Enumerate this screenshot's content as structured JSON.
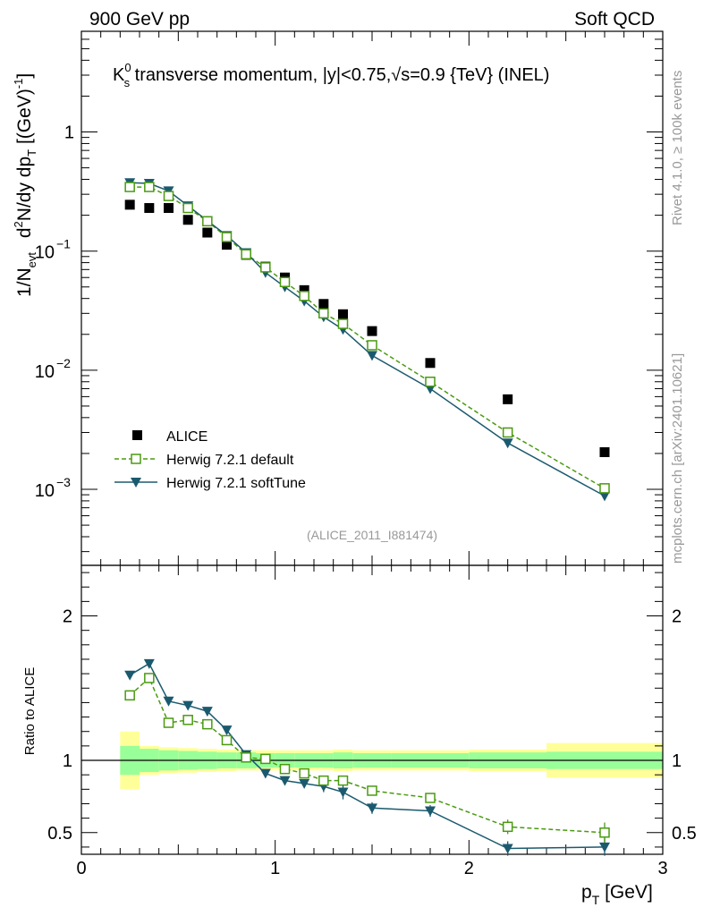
{
  "header": {
    "left": "900 GeV pp",
    "right": "Soft QCD"
  },
  "side_labels": {
    "rivet": "Rivet 4.1.0, ≥ 100k events",
    "mcplots": "mcplots.cern.ch [arXiv:2401.10621]"
  },
  "colors": {
    "alice": "#000000",
    "default": "#4a9a10",
    "softtune": "#1b5a6e",
    "band_inner": "#99ff99",
    "band_outer": "#ffff99"
  },
  "chart_data": [
    {
      "type": "scatter",
      "title": "K⁰s transverse momentum, |y|<0.75,√s=0.9 {TeV} (INEL)",
      "title_parts": {
        "main": "K",
        "sup": "0",
        "sub": "s",
        "rest_before_sqrt": " transverse momentum, |y|<0.75,",
        "sqrt_sign": "√",
        "rest_after": "s=0.9 {TeV} (INEL)"
      },
      "ylabel": "1/Nevt d²N/dy dpT [(GeV)⁻¹]",
      "ylabel_parts": {
        "a": "1/N",
        "a_sub": "evt",
        "b": "d",
        "b_sup": "2",
        "c": "N/dy dp",
        "c_sub": "T",
        "d": "[(GeV)",
        "d_sup": "-1",
        "e": "]"
      },
      "yscale": "log",
      "xlim": [
        0,
        3
      ],
      "ylim": [
        0.00023,
        7.0
      ],
      "y_tick_labels": [
        {
          "value": 1,
          "label": "1"
        },
        {
          "value": 0.1,
          "base": "10",
          "exp": "−1"
        },
        {
          "value": 0.01,
          "base": "10",
          "exp": "−2"
        },
        {
          "value": 0.001,
          "base": "10",
          "exp": "−3"
        }
      ],
      "watermark": "(ALICE_2011_I881474)",
      "legend": {
        "position": "bottom-left",
        "entries": [
          "ALICE",
          "Herwig 7.2.1 default",
          "Herwig 7.2.1 softTune"
        ]
      },
      "series": [
        {
          "name": "ALICE",
          "style": "marker",
          "x": [
            0.25,
            0.35,
            0.45,
            0.55,
            0.65,
            0.75,
            0.85,
            0.95,
            1.05,
            1.15,
            1.25,
            1.35,
            1.5,
            1.8,
            2.2,
            2.7
          ],
          "y": [
            0.245,
            0.23,
            0.23,
            0.183,
            0.143,
            0.113,
            0.093,
            0.074,
            0.06,
            0.047,
            0.036,
            0.0295,
            0.0213,
            0.0115,
            0.0057,
            0.00205
          ]
        },
        {
          "name": "Herwig 7.2.1 default",
          "style": "dashed-open-square",
          "x": [
            0.25,
            0.35,
            0.45,
            0.55,
            0.65,
            0.75,
            0.85,
            0.95,
            1.05,
            1.15,
            1.25,
            1.35,
            1.5,
            1.8,
            2.2,
            2.7
          ],
          "y": [
            0.345,
            0.345,
            0.29,
            0.23,
            0.178,
            0.131,
            0.094,
            0.073,
            0.055,
            0.042,
            0.03,
            0.0245,
            0.0162,
            0.008,
            0.003,
            0.00102
          ]
        },
        {
          "name": "Herwig 7.2.1 softTune",
          "style": "solid-filled-triangle",
          "x": [
            0.25,
            0.35,
            0.45,
            0.55,
            0.65,
            0.75,
            0.85,
            0.95,
            1.05,
            1.15,
            1.25,
            1.35,
            1.5,
            1.8,
            2.2,
            2.7
          ],
          "y": [
            0.375,
            0.37,
            0.32,
            0.24,
            0.18,
            0.135,
            0.097,
            0.066,
            0.05,
            0.038,
            0.028,
            0.022,
            0.0133,
            0.007,
            0.00245,
            0.00088
          ]
        }
      ]
    },
    {
      "type": "line",
      "ylabel": "Ratio to ALICE",
      "xlabel_parts": {
        "a": "p",
        "a_sub": "T",
        "b": " [GeV]"
      },
      "xlim": [
        0,
        3
      ],
      "ylim": [
        0.35,
        2.35
      ],
      "x_tick_labels": [
        0,
        1,
        2,
        3
      ],
      "y_tick_labels": [
        0.5,
        1,
        2
      ],
      "reference_line": 1,
      "bands": {
        "x_edges": [
          0.2,
          0.3,
          0.4,
          0.5,
          0.6,
          0.7,
          0.8,
          0.9,
          1.0,
          1.1,
          1.2,
          1.3,
          1.4,
          1.6,
          2.0,
          2.4,
          3.0
        ],
        "inner": [
          0.1,
          0.08,
          0.07,
          0.065,
          0.06,
          0.055,
          0.055,
          0.05,
          0.05,
          0.05,
          0.05,
          0.055,
          0.05,
          0.05,
          0.055,
          0.06
        ],
        "outer": [
          0.2,
          0.1,
          0.09,
          0.085,
          0.08,
          0.075,
          0.07,
          0.07,
          0.07,
          0.07,
          0.07,
          0.075,
          0.07,
          0.07,
          0.075,
          0.12
        ]
      },
      "series": [
        {
          "name": "Herwig 7.2.1 default",
          "style": "dashed-open-square",
          "x": [
            0.25,
            0.35,
            0.45,
            0.55,
            0.65,
            0.75,
            0.85,
            0.95,
            1.05,
            1.15,
            1.25,
            1.35,
            1.5,
            1.8,
            2.2,
            2.7
          ],
          "y": [
            1.45,
            1.57,
            1.26,
            1.28,
            1.25,
            1.14,
            1.02,
            1.01,
            0.94,
            0.91,
            0.86,
            0.86,
            0.79,
            0.74,
            0.54,
            0.5
          ],
          "err": [
            0.02,
            0.02,
            0.02,
            0.02,
            0.02,
            0.02,
            0.02,
            0.02,
            0.025,
            0.025,
            0.03,
            0.03,
            0.03,
            0.03,
            0.05,
            0.07
          ]
        },
        {
          "name": "Herwig 7.2.1 softTune",
          "style": "solid-filled-triangle",
          "x": [
            0.25,
            0.35,
            0.45,
            0.55,
            0.65,
            0.75,
            0.85,
            0.95,
            1.05,
            1.15,
            1.25,
            1.35,
            1.5,
            1.8,
            2.2,
            2.7
          ],
          "y": [
            1.59,
            1.67,
            1.41,
            1.38,
            1.34,
            1.21,
            1.04,
            0.91,
            0.86,
            0.84,
            0.82,
            0.78,
            0.67,
            0.65,
            0.39,
            0.4
          ],
          "err": [
            0.02,
            0.02,
            0.02,
            0.02,
            0.02,
            0.02,
            0.02,
            0.03,
            0.03,
            0.03,
            0.04,
            0.05,
            0.04,
            0.04,
            0.05,
            0.06
          ]
        }
      ]
    }
  ]
}
